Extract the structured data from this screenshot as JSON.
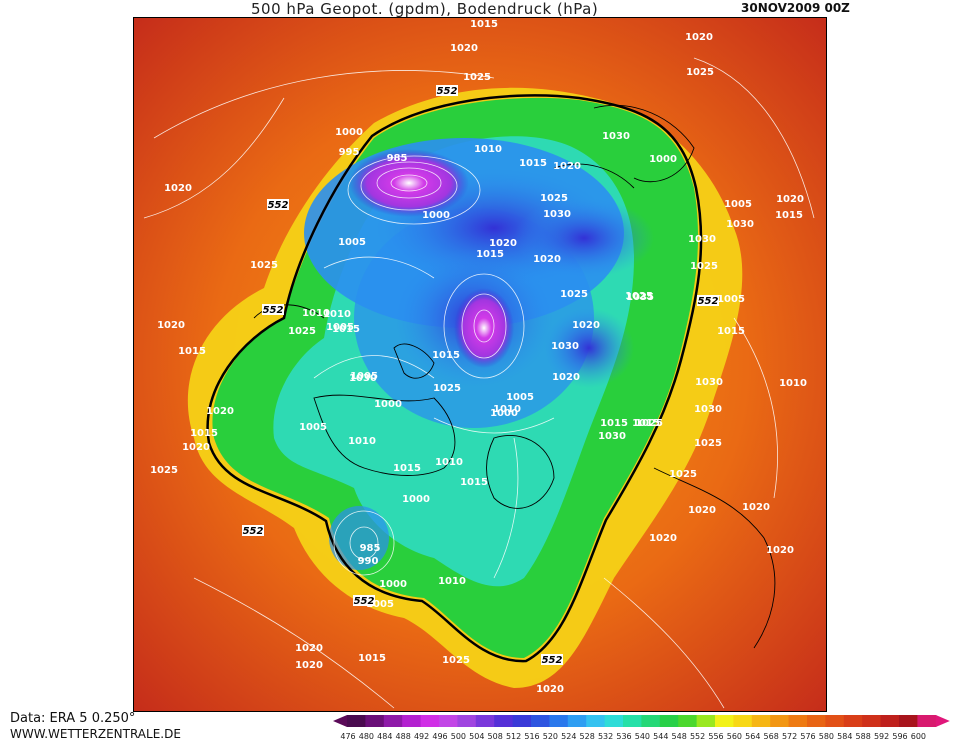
{
  "header": {
    "title": "500 hPa Geopot. (gpdm), Bodendruck (hPa)",
    "date": "30NOV2009 00Z"
  },
  "footer": {
    "data_source": "Data: ERA 5 0.250°",
    "website": "WWW.WETTERZENTRALE.DE"
  },
  "legend": {
    "unit_values": [
      "476",
      "480",
      "484",
      "488",
      "492",
      "496",
      "500",
      "504",
      "508",
      "512",
      "516",
      "520",
      "524",
      "528",
      "532",
      "536",
      "540",
      "544",
      "548",
      "552",
      "556",
      "560",
      "564",
      "568",
      "572",
      "576",
      "580",
      "584",
      "588",
      "592",
      "596",
      "600"
    ],
    "colors": [
      "#4a0b4f",
      "#6a0f78",
      "#8e1aa8",
      "#b321d0",
      "#d02fe6",
      "#c246e6",
      "#a045e0",
      "#7a38db",
      "#5530d8",
      "#3a3ad8",
      "#2e55e0",
      "#2a78ec",
      "#2f9ef2",
      "#35c2f0",
      "#2fdcd8",
      "#26e0a8",
      "#25d878",
      "#28d048",
      "#4bd82e",
      "#9ae820",
      "#f2f21a",
      "#f7d816",
      "#f6b614",
      "#f29612",
      "#ee7a12",
      "#e86414",
      "#e25016",
      "#d93e18",
      "#cf301a",
      "#bf201c",
      "#a8141c",
      "#d81a6e"
    ],
    "accent_left": "#5a0a58",
    "accent_right": "#e0177a"
  },
  "map": {
    "contour_labels_geopotential": [
      "552",
      "552",
      "552",
      "552",
      "552",
      "552",
      "552"
    ],
    "pressure_labels": [
      "1015",
      "1020",
      "1025",
      "1020",
      "1025",
      "1030",
      "1000",
      "995",
      "985",
      "1010",
      "1015",
      "1020",
      "1000",
      "1025",
      "1030",
      "1020",
      "1005",
      "1015",
      "1020",
      "1025",
      "1035",
      "1020",
      "1025",
      "1030",
      "1025",
      "1030",
      "1020",
      "1015",
      "1000",
      "1005",
      "1005",
      "1015",
      "1010",
      "1025",
      "1020",
      "1030",
      "1020",
      "1005",
      "1010",
      "1025",
      "1030",
      "1000",
      "1015",
      "1010",
      "1025",
      "1005",
      "1000",
      "1015",
      "1030",
      "1025",
      "1015",
      "1015",
      "1020",
      "985",
      "990",
      "1000",
      "1005",
      "1010",
      "1020",
      "1000",
      "1005",
      "1010",
      "1015",
      "1025",
      "1015",
      "1020",
      "1020",
      "1020",
      "1030",
      "1030",
      "1025",
      "1025",
      "1020",
      "1020",
      "1020",
      "1020",
      "1015",
      "1025",
      "1020",
      "1010",
      "1015",
      "1015",
      "1010",
      "1005"
    ],
    "colors": {
      "outer_red": "#c62e1a",
      "band_orange": "#ea6a14",
      "band_amber": "#f49614",
      "band_yellow": "#f6d116",
      "green_core": "#29cf3c",
      "teal": "#28d8b0",
      "cyan_blue": "#2b8fef",
      "deep_blue": "#3331d6",
      "violet": "#a236e0",
      "magenta": "#d23ae8"
    }
  }
}
